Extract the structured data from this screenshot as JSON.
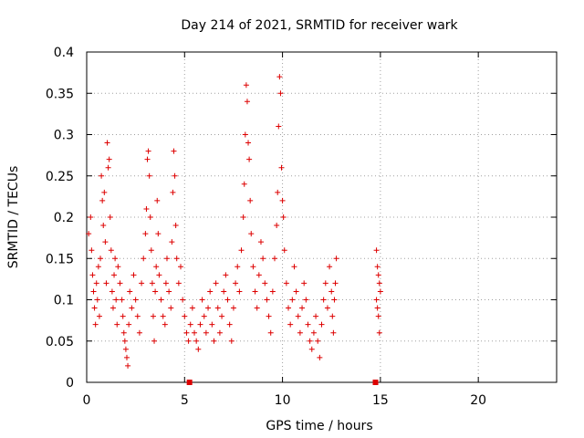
{
  "chart_data": {
    "type": "scatter",
    "title": "Day 214 of 2021, SRMTID for receiver wark",
    "xlabel": "GPS time / hours",
    "ylabel": "SRMTID / TECUs",
    "xlim": [
      0,
      24
    ],
    "ylim": [
      0,
      0.4
    ],
    "x_ticks": [
      0,
      5,
      10,
      15,
      20
    ],
    "x_tick_labels": [
      "0",
      "5",
      "10",
      "15",
      "20"
    ],
    "y_ticks": [
      0,
      0.05,
      0.1,
      0.15,
      0.2,
      0.25,
      0.3,
      0.35,
      0.4
    ],
    "y_tick_labels": [
      "0",
      "0.05",
      "0.1",
      "0.15",
      "0.2",
      "0.25",
      "0.3",
      "0.35",
      "0.4"
    ],
    "grid": true,
    "marker": "+",
    "color": "#dd0000",
    "series": [
      {
        "points": [
          [
            0.1,
            0.18
          ],
          [
            0.2,
            0.2
          ],
          [
            0.25,
            0.16
          ],
          [
            0.3,
            0.13
          ],
          [
            0.35,
            0.11
          ],
          [
            0.4,
            0.09
          ],
          [
            0.45,
            0.07
          ],
          [
            0.5,
            0.12
          ],
          [
            0.55,
            0.1
          ],
          [
            0.6,
            0.14
          ],
          [
            0.65,
            0.08
          ],
          [
            0.7,
            0.15
          ],
          [
            0.75,
            0.25
          ],
          [
            0.8,
            0.22
          ],
          [
            0.85,
            0.19
          ],
          [
            0.9,
            0.23
          ],
          [
            0.95,
            0.17
          ],
          [
            1.0,
            0.12
          ],
          [
            1.05,
            0.29
          ],
          [
            1.1,
            0.26
          ],
          [
            1.15,
            0.27
          ],
          [
            1.2,
            0.2
          ],
          [
            1.25,
            0.16
          ],
          [
            1.3,
            0.11
          ],
          [
            1.35,
            0.09
          ],
          [
            1.4,
            0.13
          ],
          [
            1.45,
            0.15
          ],
          [
            1.5,
            0.1
          ],
          [
            1.55,
            0.07
          ],
          [
            1.6,
            0.14
          ],
          [
            1.7,
            0.12
          ],
          [
            1.8,
            0.1
          ],
          [
            1.85,
            0.08
          ],
          [
            1.9,
            0.06
          ],
          [
            1.95,
            0.05
          ],
          [
            2.0,
            0.04
          ],
          [
            2.05,
            0.03
          ],
          [
            2.1,
            0.02
          ],
          [
            2.15,
            0.07
          ],
          [
            2.2,
            0.11
          ],
          [
            2.3,
            0.09
          ],
          [
            2.4,
            0.13
          ],
          [
            2.5,
            0.1
          ],
          [
            2.6,
            0.08
          ],
          [
            2.7,
            0.06
          ],
          [
            2.8,
            0.12
          ],
          [
            2.9,
            0.15
          ],
          [
            3.0,
            0.18
          ],
          [
            3.05,
            0.21
          ],
          [
            3.1,
            0.27
          ],
          [
            3.15,
            0.28
          ],
          [
            3.2,
            0.25
          ],
          [
            3.25,
            0.2
          ],
          [
            3.3,
            0.16
          ],
          [
            3.35,
            0.12
          ],
          [
            3.4,
            0.08
          ],
          [
            3.45,
            0.05
          ],
          [
            3.5,
            0.11
          ],
          [
            3.55,
            0.14
          ],
          [
            3.6,
            0.22
          ],
          [
            3.65,
            0.18
          ],
          [
            3.7,
            0.13
          ],
          [
            3.8,
            0.1
          ],
          [
            3.9,
            0.08
          ],
          [
            4.0,
            0.07
          ],
          [
            4.05,
            0.12
          ],
          [
            4.1,
            0.15
          ],
          [
            4.2,
            0.11
          ],
          [
            4.3,
            0.09
          ],
          [
            4.35,
            0.17
          ],
          [
            4.4,
            0.23
          ],
          [
            4.45,
            0.28
          ],
          [
            4.5,
            0.25
          ],
          [
            4.55,
            0.19
          ],
          [
            4.6,
            0.15
          ],
          [
            4.7,
            0.12
          ],
          [
            4.8,
            0.14
          ],
          [
            4.9,
            0.1
          ],
          [
            5.0,
            0.08
          ],
          [
            5.1,
            0.06
          ],
          [
            5.2,
            0.05
          ],
          [
            5.3,
            0.07
          ],
          [
            5.4,
            0.09
          ],
          [
            5.5,
            0.06
          ],
          [
            5.6,
            0.05
          ],
          [
            5.7,
            0.04
          ],
          [
            5.8,
            0.07
          ],
          [
            5.9,
            0.1
          ],
          [
            6.0,
            0.08
          ],
          [
            6.1,
            0.06
          ],
          [
            6.2,
            0.09
          ],
          [
            6.3,
            0.11
          ],
          [
            6.4,
            0.07
          ],
          [
            6.5,
            0.05
          ],
          [
            6.6,
            0.12
          ],
          [
            6.7,
            0.09
          ],
          [
            6.8,
            0.06
          ],
          [
            6.9,
            0.08
          ],
          [
            7.0,
            0.11
          ],
          [
            7.1,
            0.13
          ],
          [
            7.2,
            0.1
          ],
          [
            7.3,
            0.07
          ],
          [
            7.4,
            0.05
          ],
          [
            7.5,
            0.09
          ],
          [
            7.6,
            0.12
          ],
          [
            7.7,
            0.14
          ],
          [
            7.8,
            0.11
          ],
          [
            7.9,
            0.16
          ],
          [
            8.0,
            0.2
          ],
          [
            8.05,
            0.24
          ],
          [
            8.1,
            0.3
          ],
          [
            8.15,
            0.36
          ],
          [
            8.2,
            0.34
          ],
          [
            8.25,
            0.29
          ],
          [
            8.3,
            0.27
          ],
          [
            8.35,
            0.22
          ],
          [
            8.4,
            0.18
          ],
          [
            8.5,
            0.14
          ],
          [
            8.6,
            0.11
          ],
          [
            8.7,
            0.09
          ],
          [
            8.8,
            0.13
          ],
          [
            8.9,
            0.17
          ],
          [
            9.0,
            0.15
          ],
          [
            9.1,
            0.12
          ],
          [
            9.2,
            0.1
          ],
          [
            9.3,
            0.08
          ],
          [
            9.4,
            0.06
          ],
          [
            9.5,
            0.11
          ],
          [
            9.6,
            0.15
          ],
          [
            9.7,
            0.19
          ],
          [
            9.75,
            0.23
          ],
          [
            9.8,
            0.31
          ],
          [
            9.85,
            0.37
          ],
          [
            9.9,
            0.35
          ],
          [
            9.95,
            0.26
          ],
          [
            10.0,
            0.22
          ],
          [
            10.05,
            0.2
          ],
          [
            10.1,
            0.16
          ],
          [
            10.2,
            0.12
          ],
          [
            10.3,
            0.09
          ],
          [
            10.4,
            0.07
          ],
          [
            10.5,
            0.1
          ],
          [
            10.6,
            0.14
          ],
          [
            10.7,
            0.11
          ],
          [
            10.8,
            0.08
          ],
          [
            10.9,
            0.06
          ],
          [
            11.0,
            0.09
          ],
          [
            11.1,
            0.12
          ],
          [
            11.2,
            0.1
          ],
          [
            11.3,
            0.07
          ],
          [
            11.4,
            0.05
          ],
          [
            11.5,
            0.04
          ],
          [
            11.6,
            0.06
          ],
          [
            11.7,
            0.08
          ],
          [
            11.8,
            0.05
          ],
          [
            11.9,
            0.03
          ],
          [
            12.0,
            0.07
          ],
          [
            12.1,
            0.1
          ],
          [
            12.2,
            0.12
          ],
          [
            12.3,
            0.09
          ],
          [
            12.4,
            0.14
          ],
          [
            12.5,
            0.11
          ],
          [
            12.55,
            0.08
          ],
          [
            12.6,
            0.06
          ],
          [
            12.65,
            0.1
          ],
          [
            12.7,
            0.12
          ],
          [
            12.75,
            0.15
          ],
          [
            14.8,
            0.16
          ],
          [
            14.85,
            0.14
          ],
          [
            14.9,
            0.13
          ],
          [
            14.95,
            0.12
          ],
          [
            15.0,
            0.11
          ],
          [
            14.8,
            0.1
          ],
          [
            14.85,
            0.09
          ],
          [
            14.9,
            0.08
          ],
          [
            14.95,
            0.06
          ]
        ]
      }
    ],
    "zero_markers": [
      5.25,
      14.75
    ]
  }
}
